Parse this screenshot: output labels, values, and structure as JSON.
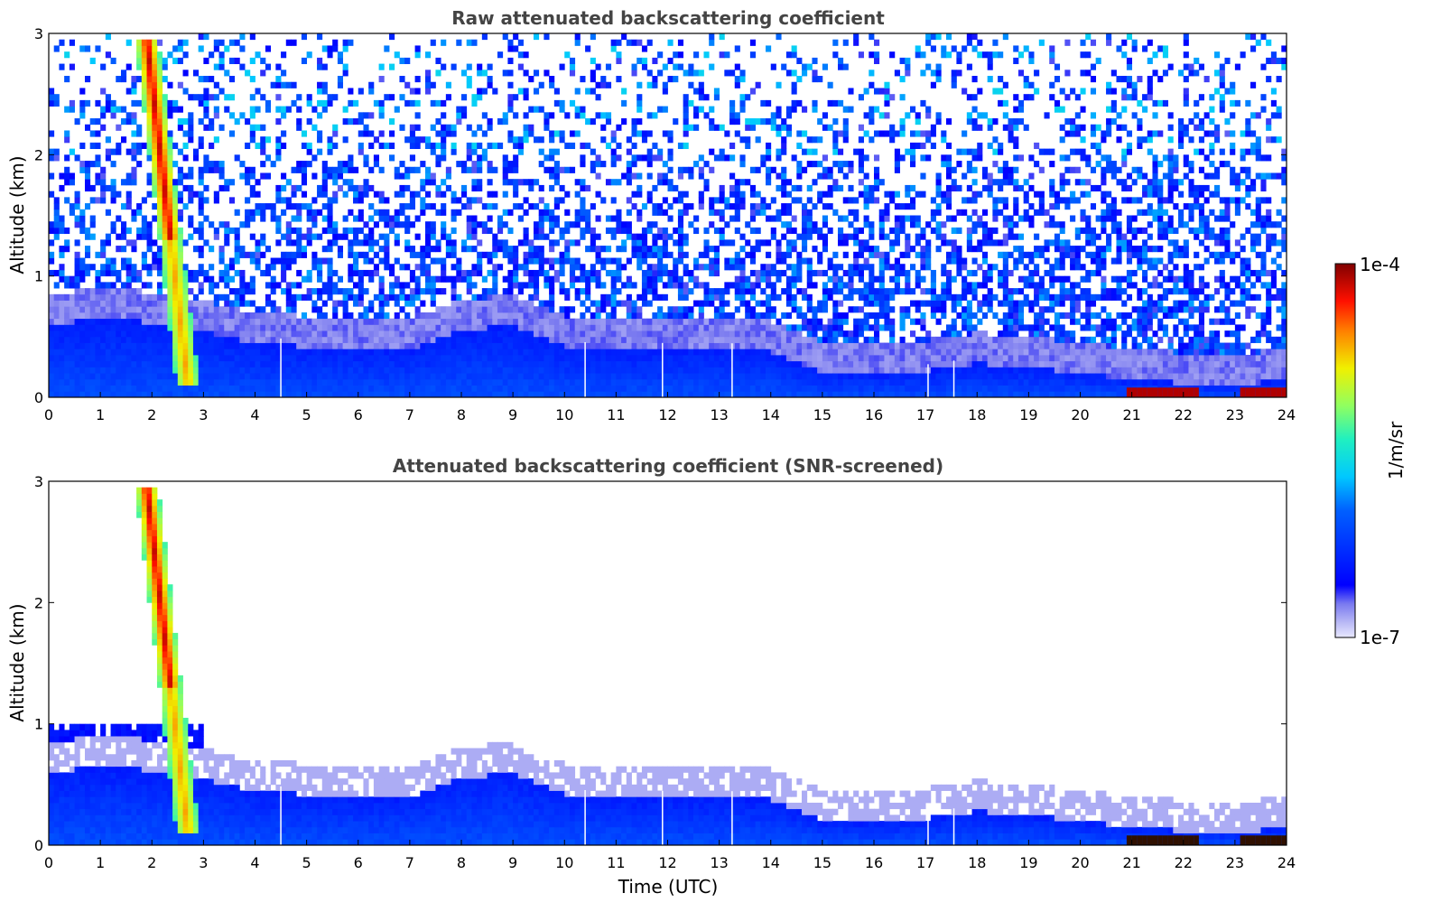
{
  "chart_data": [
    {
      "type": "heatmap",
      "title": "Raw attenuated backscattering coefficient",
      "xlabel": "",
      "ylabel": "Altitude (km)",
      "xlim": [
        0,
        24
      ],
      "ylim": [
        0,
        3
      ],
      "x_ticks": [
        "0",
        "1",
        "2",
        "3",
        "4",
        "5",
        "6",
        "7",
        "8",
        "9",
        "10",
        "11",
        "12",
        "13",
        "14",
        "15",
        "16",
        "17",
        "18",
        "19",
        "20",
        "21",
        "22",
        "23",
        "24"
      ],
      "y_ticks": [
        "0",
        "1",
        "2",
        "3"
      ],
      "screened": false
    },
    {
      "type": "heatmap",
      "title": "Attenuated backscattering coefficient (SNR-screened)",
      "xlabel": "Time (UTC)",
      "ylabel": "Altitude (km)",
      "xlim": [
        0,
        24
      ],
      "ylim": [
        0,
        3
      ],
      "x_ticks": [
        "0",
        "1",
        "2",
        "3",
        "4",
        "5",
        "6",
        "7",
        "8",
        "9",
        "10",
        "11",
        "12",
        "13",
        "14",
        "15",
        "16",
        "17",
        "18",
        "19",
        "20",
        "21",
        "22",
        "23",
        "24"
      ],
      "y_ticks": [
        "0",
        "1",
        "2",
        "3"
      ],
      "screened": true
    }
  ],
  "colorbar": {
    "label": "1/m/sr",
    "min_label": "1e-7",
    "max_label": "1e-4",
    "scale": "log",
    "colormap": "jet"
  },
  "features": {
    "boundary_layer_top_km": [
      [
        0,
        0.6
      ],
      [
        1,
        0.65
      ],
      [
        2,
        0.62
      ],
      [
        3,
        0.55
      ],
      [
        4,
        0.45
      ],
      [
        5,
        0.42
      ],
      [
        6,
        0.42
      ],
      [
        7,
        0.4
      ],
      [
        8,
        0.55
      ],
      [
        9,
        0.6
      ],
      [
        10,
        0.42
      ],
      [
        11,
        0.38
      ],
      [
        12,
        0.4
      ],
      [
        13,
        0.4
      ],
      [
        14,
        0.38
      ],
      [
        15,
        0.2
      ],
      [
        16,
        0.2
      ],
      [
        17,
        0.22
      ],
      [
        18,
        0.28
      ],
      [
        19,
        0.25
      ],
      [
        20,
        0.2
      ],
      [
        21,
        0.15
      ],
      [
        22,
        0.12
      ],
      [
        23,
        0.1
      ],
      [
        24,
        0.15
      ]
    ],
    "precip_streak": {
      "x_top": 1.9,
      "alt_top_km": 2.95,
      "x_bottom": 2.7,
      "alt_bottom_km": 0.1
    },
    "data_gaps_utc": [
      4.5,
      10.4,
      11.9,
      13.25,
      17.05,
      17.55
    ]
  }
}
